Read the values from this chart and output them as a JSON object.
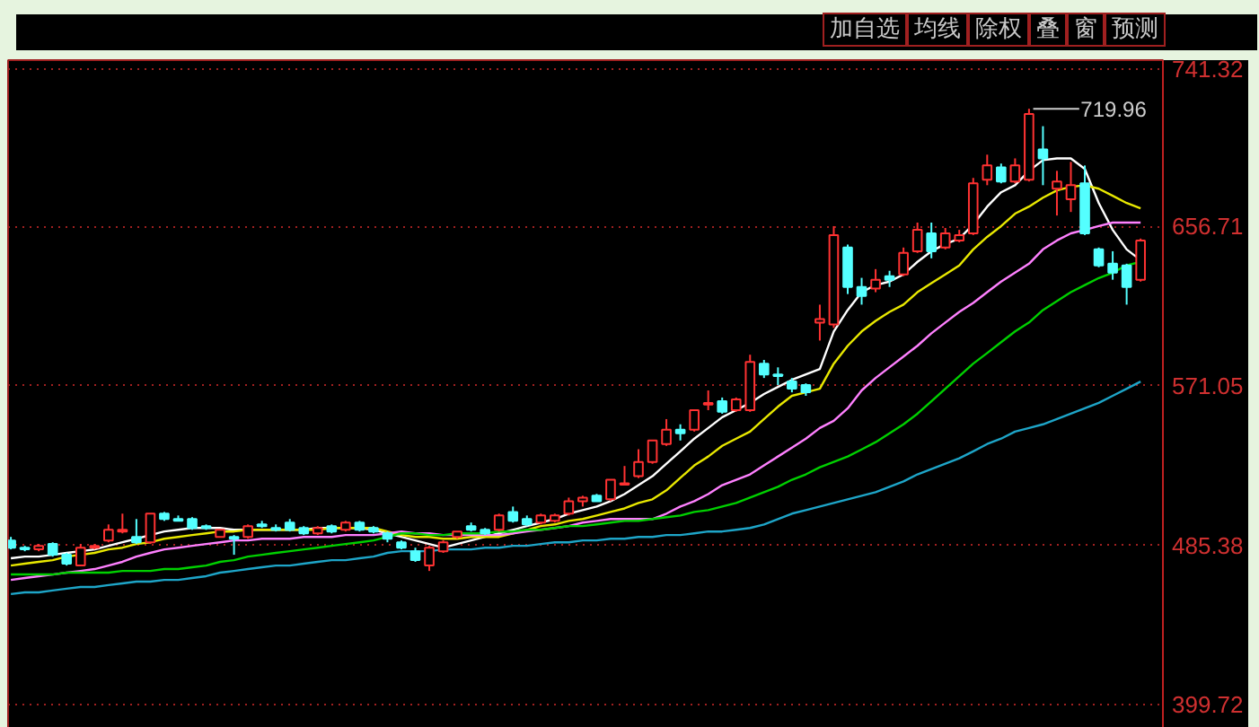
{
  "chart_data": {
    "type": "candlestick",
    "categories": [
      null,
      null,
      null,
      null,
      null,
      null,
      null,
      null,
      null,
      null,
      null,
      null,
      null,
      null,
      null,
      null,
      null,
      null,
      null,
      null,
      null,
      null,
      null,
      null,
      null,
      null,
      null,
      null,
      null,
      null,
      null,
      null,
      null,
      null,
      null,
      null,
      null,
      null,
      null,
      null,
      null,
      null,
      null,
      null,
      null,
      null,
      null,
      null,
      null,
      null,
      null,
      null,
      null,
      null,
      null,
      null,
      null,
      null,
      null,
      null,
      null,
      null,
      null,
      null,
      null,
      null,
      null,
      null,
      null,
      null,
      null,
      null,
      null,
      null,
      null,
      null,
      null,
      null,
      null,
      null,
      null,
      null
    ],
    "ohlc": [
      [
        488.0,
        489.9,
        483.2,
        484.1
      ],
      [
        484.1,
        485.1,
        482.2,
        483.2
      ],
      [
        483.2,
        486.1,
        482.2,
        485.1
      ],
      [
        486.1,
        487.0,
        479.3,
        480.3
      ],
      [
        480.3,
        481.3,
        474.5,
        475.5
      ],
      [
        474.5,
        486.1,
        474.5,
        484.1
      ],
      [
        484.1,
        486.1,
        483.2,
        485.1
      ],
      [
        488.0,
        496.6,
        487.0,
        493.7
      ],
      [
        492.8,
        502.4,
        491.8,
        493.7
      ],
      [
        489.9,
        499.5,
        486.1,
        487.0
      ],
      [
        487.0,
        502.4,
        486.1,
        502.4
      ],
      [
        502.4,
        503.3,
        498.5,
        499.5
      ],
      [
        499.5,
        501.4,
        498.5,
        498.5
      ],
      [
        499.5,
        500.5,
        493.7,
        494.7
      ],
      [
        495.7,
        496.6,
        493.7,
        494.7
      ],
      [
        489.9,
        493.7,
        489.9,
        493.7
      ],
      [
        489.9,
        490.9,
        480.3,
        488.9
      ],
      [
        489.9,
        496.6,
        488.9,
        495.7
      ],
      [
        496.6,
        498.5,
        494.7,
        495.7
      ],
      [
        494.7,
        496.6,
        492.8,
        493.7
      ],
      [
        497.6,
        499.5,
        492.8,
        493.7
      ],
      [
        494.7,
        495.7,
        490.9,
        491.8
      ],
      [
        491.8,
        495.7,
        490.9,
        494.7
      ],
      [
        495.7,
        496.6,
        491.8,
        492.8
      ],
      [
        493.7,
        498.5,
        492.8,
        497.6
      ],
      [
        497.6,
        498.5,
        492.8,
        493.7
      ],
      [
        494.7,
        495.7,
        491.8,
        492.8
      ],
      [
        491.8,
        492.8,
        487.0,
        488.9
      ],
      [
        487.0,
        488.0,
        483.2,
        484.1
      ],
      [
        482.2,
        484.1,
        476.5,
        477.4
      ],
      [
        474.5,
        485.1,
        471.6,
        484.1
      ],
      [
        482.2,
        488.0,
        481.3,
        487.0
      ],
      [
        489.9,
        492.8,
        488.9,
        492.8
      ],
      [
        495.7,
        497.6,
        492.8,
        493.7
      ],
      [
        493.7,
        494.7,
        490.9,
        491.8
      ],
      [
        493.7,
        502.4,
        492.8,
        501.4
      ],
      [
        503.3,
        506.2,
        497.6,
        498.5
      ],
      [
        499.5,
        501.4,
        495.7,
        496.6
      ],
      [
        497.6,
        502.4,
        496.6,
        501.4
      ],
      [
        498.5,
        502.4,
        497.6,
        501.4
      ],
      [
        502.4,
        511.0,
        501.4,
        509.1
      ],
      [
        509.1,
        512.0,
        506.2,
        511.0
      ],
      [
        512.0,
        513.0,
        509.1,
        509.1
      ],
      [
        510.1,
        520.6,
        509.1,
        520.6
      ],
      [
        518.0,
        528.0,
        517.7,
        518.7
      ],
      [
        522.5,
        537.0,
        521.5,
        530.2
      ],
      [
        530.2,
        541.7,
        529.2,
        541.7
      ],
      [
        539.8,
        553.2,
        538.8,
        547.5
      ],
      [
        547.5,
        550.4,
        541.7,
        545.6
      ],
      [
        547.5,
        558.0,
        546.5,
        558.0
      ],
      [
        561.0,
        568.6,
        558.0,
        561.9
      ],
      [
        562.8,
        564.8,
        556.1,
        557.1
      ],
      [
        558.0,
        564.8,
        557.1,
        563.8
      ],
      [
        558.0,
        587.8,
        557.1,
        583.9
      ],
      [
        583.0,
        585.0,
        575.3,
        577.2
      ],
      [
        577.2,
        581.0,
        571.5,
        576.3
      ],
      [
        573.4,
        575.3,
        567.6,
        569.6
      ],
      [
        571.5,
        572.4,
        565.7,
        567.6
      ],
      [
        605.0,
        614.7,
        595.4,
        607.0
      ],
      [
        604.1,
        656.9,
        602.2,
        652.1
      ],
      [
        645.4,
        647.0,
        620.4,
        624.2
      ],
      [
        624.2,
        629.1,
        614.7,
        619.4
      ],
      [
        623.3,
        633.8,
        621.4,
        628.1
      ],
      [
        630.0,
        632.9,
        624.2,
        628.1
      ],
      [
        631.0,
        645.4,
        630.0,
        642.5
      ],
      [
        643.4,
        658.8,
        642.5,
        654.9
      ],
      [
        653.0,
        658.8,
        639.6,
        643.4
      ],
      [
        645.4,
        655.9,
        644.4,
        653.0
      ],
      [
        649.2,
        654.9,
        648.2,
        652.1
      ],
      [
        653.0,
        682.8,
        652.1,
        679.9
      ],
      [
        681.8,
        695.3,
        678.9,
        689.5
      ],
      [
        688.5,
        690.5,
        679.9,
        680.9
      ],
      [
        680.9,
        693.3,
        679.9,
        689.5
      ],
      [
        681.8,
        719.96,
        680.9,
        717.2
      ],
      [
        698.1,
        710.6,
        678.9,
        693.3
      ],
      [
        677.0,
        686.6,
        662.6,
        680.9
      ],
      [
        671.3,
        691.4,
        664.5,
        678.9
      ],
      [
        679.9,
        689.5,
        652.1,
        653.0
      ],
      [
        644.4,
        645.4,
        634.8,
        635.8
      ],
      [
        636.7,
        643.4,
        628.1,
        631.9
      ],
      [
        635.8,
        636.7,
        614.7,
        624.2
      ],
      [
        628.1,
        650.2,
        627.1,
        649.2
      ]
    ],
    "colors": [
      "#54ffff",
      "#54ffff",
      "#ff3232",
      "#54ffff",
      "#54ffff",
      "#ff3232",
      "#ff3232",
      "#ff3232",
      "#ff3232",
      "#54ffff",
      "#ff3232",
      "#54ffff",
      "#54ffff",
      "#54ffff",
      "#54ffff",
      "#ff3232",
      "#54ffff",
      "#ff3232",
      "#54ffff",
      "#54ffff",
      "#54ffff",
      "#54ffff",
      "#ff3232",
      "#54ffff",
      "#ff3232",
      "#54ffff",
      "#54ffff",
      "#54ffff",
      "#54ffff",
      "#54ffff",
      "#ff3232",
      "#ff3232",
      "#ff3232",
      "#54ffff",
      "#54ffff",
      "#ff3232",
      "#54ffff",
      "#54ffff",
      "#ff3232",
      "#ff3232",
      "#ff3232",
      "#ff3232",
      "#54ffff",
      "#ff3232",
      "#ff3232",
      "#ff3232",
      "#ff3232",
      "#ff3232",
      "#54ffff",
      "#ff3232",
      "#ff3232",
      "#54ffff",
      "#ff3232",
      "#ff3232",
      "#54ffff",
      "#54ffff",
      "#54ffff",
      "#54ffff",
      "#ff3232",
      "#ff3232",
      "#54ffff",
      "#54ffff",
      "#ff3232",
      "#54ffff",
      "#ff3232",
      "#ff3232",
      "#54ffff",
      "#ff3232",
      "#ff3232",
      "#ff3232",
      "#ff3232",
      "#54ffff",
      "#ff3232",
      "#ff3232",
      "#54ffff",
      "#ff3232",
      "#ff3232",
      "#54ffff",
      "#54ffff",
      "#54ffff",
      "#54ffff",
      "#ff3232"
    ],
    "series": [
      {
        "type": "line",
        "color": "#ffffff",
        "values": [
          478.4,
          479.3,
          479.3,
          480.3,
          481.3,
          482.2,
          483.2,
          485.1,
          487.0,
          488.9,
          490.9,
          492.8,
          493.7,
          494.7,
          494.7,
          494.7,
          493.7,
          493.7,
          493.7,
          493.7,
          493.7,
          493.7,
          494.7,
          494.7,
          494.7,
          494.7,
          493.7,
          491.8,
          489.9,
          488.0,
          486.1,
          484.1,
          486.1,
          488.0,
          489.9,
          491.8,
          493.7,
          495.7,
          497.6,
          499.5,
          502.4,
          504.3,
          506.2,
          509.1,
          512.9,
          517.7,
          522.5,
          529.2,
          535.9,
          542.7,
          548.4,
          554.2,
          558.0,
          561.9,
          566.7,
          570.5,
          574.3,
          577.2,
          580.1,
          600.3,
          611.8,
          621.4,
          625.2,
          627.1,
          631.0,
          637.7,
          643.4,
          647.3,
          650.2,
          657.8,
          667.4,
          675.1,
          678.9,
          686.6,
          692.4,
          693.3,
          693.3,
          687.6,
          669.3,
          654.9,
          644.4,
          638.6
        ]
      },
      {
        "type": "line",
        "color": "#e8e800",
        "values": [
          474.5,
          475.5,
          476.5,
          477.4,
          479.3,
          480.3,
          481.3,
          483.2,
          484.1,
          486.1,
          487.0,
          488.9,
          489.9,
          490.9,
          491.8,
          492.8,
          492.8,
          493.7,
          493.7,
          493.7,
          493.7,
          493.7,
          493.7,
          494.7,
          494.7,
          494.7,
          494.7,
          492.8,
          490.9,
          489.9,
          489.9,
          488.9,
          488.9,
          489.9,
          489.9,
          489.9,
          491.8,
          493.7,
          495.7,
          496.6,
          498.5,
          499.5,
          501.4,
          503.3,
          505.2,
          508.1,
          510.1,
          514.9,
          521.6,
          528.3,
          533.1,
          538.8,
          542.7,
          546.5,
          553.2,
          559.9,
          565.7,
          567.6,
          569.5,
          583.0,
          592.6,
          600.3,
          606.0,
          610.8,
          614.7,
          621.4,
          626.2,
          631.0,
          635.8,
          644.4,
          651.1,
          656.9,
          663.6,
          667.4,
          672.2,
          676.1,
          678.0,
          678.9,
          677.0,
          673.2,
          669.3,
          666.5
        ]
      },
      {
        "type": "line",
        "color": "#ff80ff",
        "values": [
          466.8,
          467.8,
          468.8,
          469.7,
          470.7,
          471.6,
          472.6,
          474.5,
          476.5,
          479.3,
          481.3,
          483.2,
          484.1,
          485.1,
          486.1,
          487.0,
          488.0,
          488.0,
          488.9,
          488.9,
          488.9,
          489.9,
          489.9,
          489.9,
          490.9,
          490.9,
          490.9,
          491.8,
          492.8,
          491.8,
          491.8,
          490.9,
          490.9,
          490.9,
          490.9,
          490.9,
          491.8,
          492.8,
          493.7,
          494.7,
          495.7,
          497.6,
          498.5,
          499.5,
          499.5,
          499.5,
          499.5,
          502.4,
          506.2,
          509.1,
          512.9,
          517.7,
          520.6,
          523.5,
          528.3,
          533.1,
          537.9,
          542.7,
          548.4,
          552.3,
          559.0,
          568.6,
          575.3,
          581.1,
          586.8,
          592.6,
          599.3,
          605.1,
          610.8,
          615.6,
          621.4,
          627.1,
          631.9,
          636.7,
          644.4,
          649.2,
          653.0,
          654.9,
          656.9,
          658.8,
          658.8,
          658.8
        ]
      },
      {
        "type": "line",
        "color": "#00d000",
        "values": [
          469.7,
          469.7,
          469.7,
          469.7,
          470.7,
          470.7,
          470.7,
          470.7,
          471.6,
          471.6,
          471.6,
          472.6,
          472.6,
          473.6,
          474.5,
          476.5,
          477.4,
          479.3,
          480.3,
          481.3,
          482.2,
          483.2,
          484.1,
          485.1,
          486.1,
          487.0,
          488.0,
          489.9,
          491.8,
          491.8,
          490.9,
          490.9,
          491.8,
          491.8,
          491.8,
          492.8,
          492.8,
          493.7,
          493.7,
          494.7,
          495.7,
          495.7,
          496.6,
          497.6,
          498.5,
          498.5,
          499.5,
          500.5,
          501.4,
          503.3,
          504.3,
          506.2,
          508.1,
          511.0,
          513.9,
          516.8,
          520.6,
          523.5,
          527.3,
          530.2,
          533.1,
          536.9,
          540.8,
          545.6,
          550.4,
          556.1,
          562.8,
          569.5,
          576.3,
          583.0,
          588.7,
          594.5,
          600.3,
          605.1,
          611.8,
          616.6,
          621.4,
          625.2,
          629.0,
          631.9,
          635.8,
          637.7
        ]
      },
      {
        "type": "line",
        "color": "#1ea5c8",
        "values": [
          459.2,
          460.1,
          460.1,
          461.1,
          462.1,
          463.0,
          463.0,
          464.0,
          464.9,
          465.9,
          465.9,
          466.8,
          466.8,
          467.8,
          468.8,
          470.7,
          471.6,
          472.6,
          473.6,
          474.5,
          474.5,
          475.5,
          476.5,
          477.4,
          477.4,
          478.4,
          479.3,
          481.3,
          482.2,
          482.2,
          482.2,
          483.2,
          483.2,
          483.2,
          484.1,
          484.1,
          485.1,
          485.1,
          486.1,
          487.0,
          487.0,
          488.0,
          488.0,
          488.9,
          488.9,
          489.9,
          489.9,
          490.9,
          490.9,
          491.8,
          492.8,
          492.8,
          493.7,
          494.7,
          496.6,
          499.5,
          502.4,
          504.3,
          506.2,
          508.1,
          510.1,
          512.0,
          513.9,
          516.8,
          519.7,
          523.5,
          526.4,
          529.2,
          532.1,
          535.9,
          539.8,
          542.7,
          546.5,
          548.4,
          550.4,
          553.2,
          556.1,
          559.0,
          561.9,
          565.7,
          569.5,
          573.4
        ]
      }
    ],
    "ylim": [
      383.4,
      746.1
    ],
    "yticks": [
      741.32,
      656.71,
      571.05,
      485.38,
      399.72
    ],
    "grid": "y",
    "tick_labels": "y",
    "annotations": [
      "加自选",
      "均线",
      "除权",
      "叠",
      "窗",
      "预测",
      "719.96"
    ]
  }
}
